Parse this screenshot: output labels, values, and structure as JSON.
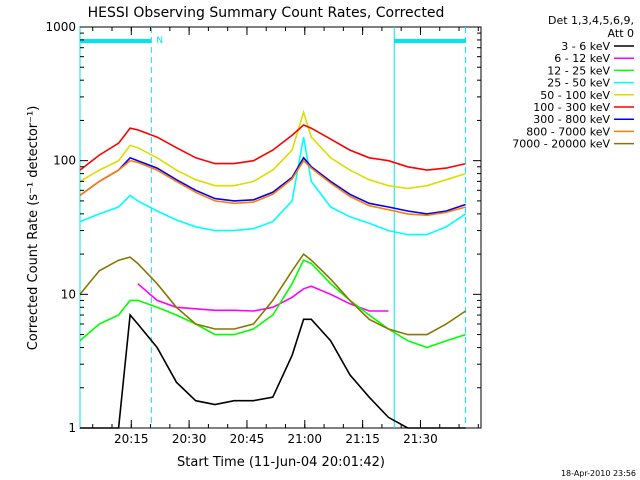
{
  "chart_data": {
    "type": "line",
    "title": "HESSI Observing Summary Count Rates, Corrected",
    "xlabel": "Start Time (11-Jun-04 20:01:42)",
    "ylabel": "Corrected Count Rate (s⁻¹ detector⁻¹)",
    "yscale": "log",
    "ylim": [
      1,
      1000
    ],
    "xlim_minutes": [
      0,
      104
    ],
    "x_ticks": [
      {
        "label": "20:15",
        "min": 13.3
      },
      {
        "label": "20:30",
        "min": 28.3
      },
      {
        "label": "20:45",
        "min": 43.3
      },
      {
        "label": "21:00",
        "min": 58.3
      },
      {
        "label": "21:15",
        "min": 73.3
      },
      {
        "label": "21:30",
        "min": 88.3
      }
    ],
    "y_ticks": [
      {
        "label": "1",
        "value": 1
      },
      {
        "label": "10",
        "value": 10
      },
      {
        "label": "100",
        "value": 100
      },
      {
        "label": "1000",
        "value": 1000
      }
    ],
    "legend": {
      "position": "right",
      "header": [
        "Det 1,3,4,5,6,9,",
        "Att 0"
      ],
      "entries": [
        {
          "label": "3 - 6 keV",
          "color": "#000000"
        },
        {
          "label": "6 - 12 keV",
          "color": "#ff00ff"
        },
        {
          "label": "12 - 25 keV",
          "color": "#00ff00"
        },
        {
          "label": "25 - 50 keV",
          "color": "#00ffff"
        },
        {
          "label": "50 - 100 keV",
          "color": "#dddd00"
        },
        {
          "label": "100 - 300 keV",
          "color": "#ff0000"
        },
        {
          "label": "300 - 800 keV",
          "color": "#0000ff"
        },
        {
          "label": "800 - 7000 keV",
          "color": "#ff8000"
        },
        {
          "label": "7000 - 20000 keV",
          "color": "#8b7500"
        }
      ]
    },
    "annotations": {
      "night_marker": "N",
      "night_intervals_minutes": [
        [
          0,
          18.5
        ],
        [
          81.5,
          100
        ]
      ],
      "saa_lines_minutes": [
        18.5,
        100
      ],
      "timestamp": "18-Apr-2010 23:56"
    },
    "x_minutes": [
      0,
      5,
      10,
      13,
      15,
      20,
      25,
      30,
      35,
      40,
      45,
      50,
      55,
      58,
      60,
      65,
      70,
      75,
      80,
      85,
      90,
      95,
      100
    ],
    "series": [
      {
        "name": "3 - 6 keV",
        "color": "#000000",
        "values": [
          1,
          1,
          1,
          7,
          6,
          4,
          2.2,
          1.6,
          1.5,
          1.6,
          1.6,
          1.7,
          3.5,
          6.5,
          6.5,
          4.5,
          2.5,
          1.7,
          1.2,
          1,
          1,
          1,
          1
        ]
      },
      {
        "name": "6 - 12 keV",
        "color": "#ff00ff",
        "values": [
          null,
          null,
          null,
          null,
          12,
          9,
          8,
          7.8,
          7.6,
          7.6,
          7.5,
          8,
          9.5,
          11,
          11.5,
          10,
          8.5,
          7.5,
          7.5,
          null,
          null,
          null,
          null
        ]
      },
      {
        "name": "12 - 25 keV",
        "color": "#00ff00",
        "values": [
          4.5,
          6,
          7,
          9,
          9,
          8,
          7,
          6,
          5,
          5,
          5.5,
          7,
          12,
          18,
          17,
          12,
          9,
          7,
          5.5,
          4.5,
          4,
          4.5,
          5
        ]
      },
      {
        "name": "25 - 50 keV",
        "color": "#00ffff",
        "values": [
          35,
          40,
          45,
          55,
          50,
          42,
          36,
          32,
          30,
          30,
          31,
          35,
          50,
          150,
          70,
          45,
          38,
          34,
          30,
          28,
          28,
          32,
          40
        ]
      },
      {
        "name": "50 - 100 keV",
        "color": "#dddd00",
        "values": [
          70,
          85,
          100,
          130,
          125,
          105,
          85,
          72,
          65,
          65,
          70,
          85,
          120,
          230,
          150,
          105,
          85,
          72,
          65,
          62,
          65,
          72,
          80
        ]
      },
      {
        "name": "100 - 300 keV",
        "color": "#ff0000",
        "values": [
          85,
          110,
          135,
          175,
          170,
          150,
          125,
          105,
          95,
          95,
          100,
          120,
          155,
          185,
          175,
          145,
          120,
          105,
          100,
          90,
          85,
          88,
          95
        ]
      },
      {
        "name": "300 - 800 keV",
        "color": "#0000ff",
        "values": [
          55,
          70,
          85,
          105,
          100,
          88,
          72,
          60,
          52,
          50,
          51,
          58,
          75,
          105,
          90,
          70,
          56,
          48,
          45,
          42,
          40,
          42,
          47
        ]
      },
      {
        "name": "800 - 7000 keV",
        "color": "#ff8000",
        "values": [
          55,
          70,
          85,
          100,
          97,
          85,
          70,
          58,
          50,
          48,
          49,
          56,
          73,
          100,
          88,
          68,
          54,
          46,
          43,
          40,
          39,
          41,
          45
        ]
      },
      {
        "name": "7000 - 20000 keV",
        "color": "#8b7500",
        "values": [
          10,
          15,
          18,
          19,
          17,
          12,
          8,
          6,
          5.5,
          5.5,
          6,
          9,
          15,
          20,
          18,
          13,
          9,
          6.5,
          5.5,
          5,
          5,
          6,
          7.5
        ]
      }
    ]
  }
}
